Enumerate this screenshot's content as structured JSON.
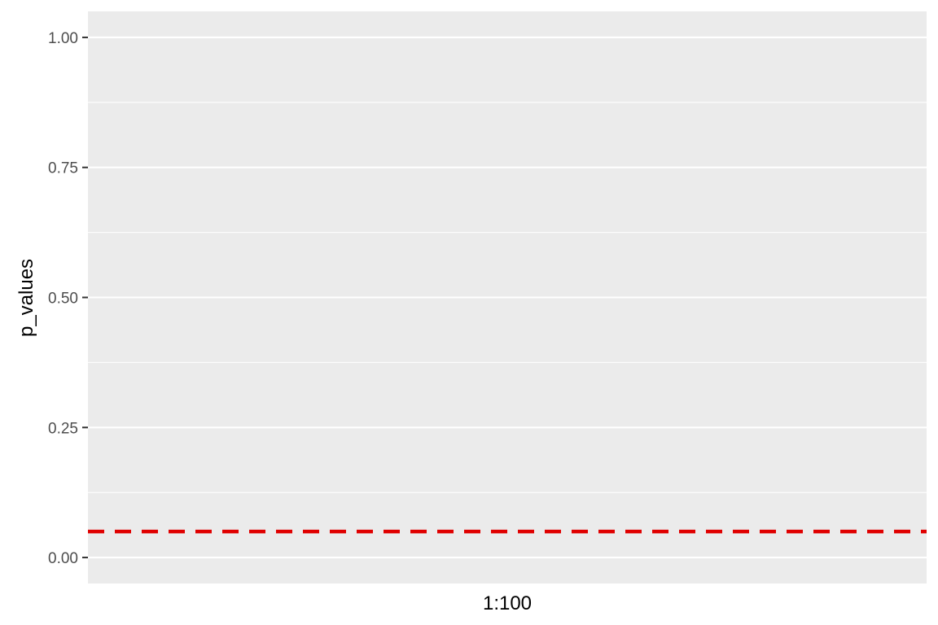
{
  "chart_data": {
    "type": "scatter",
    "title": "",
    "xlabel": "1:100",
    "ylabel": "p_values",
    "ylim": [
      -0.05,
      1.05
    ],
    "y_ticks": [
      {
        "value": 0.0,
        "label": "0.00"
      },
      {
        "value": 0.25,
        "label": "0.25"
      },
      {
        "value": 0.5,
        "label": "0.50"
      },
      {
        "value": 0.75,
        "label": "0.75"
      },
      {
        "value": 1.0,
        "label": "1.00"
      }
    ],
    "y_minor_grid": [
      0.125,
      0.375,
      0.625,
      0.875
    ],
    "x_major_grid": false,
    "series": [],
    "reference_lines": [
      {
        "orientation": "horizontal",
        "y": 0.05,
        "color": "#E00000",
        "style": "dashed"
      }
    ],
    "grid": true,
    "legend": "none",
    "colors": {
      "panel_background": "#EBEBEB",
      "grid_line": "#FFFFFF",
      "tick_text": "#4D4D4D",
      "tick_mark": "#333333",
      "title_text": "#000000"
    }
  }
}
